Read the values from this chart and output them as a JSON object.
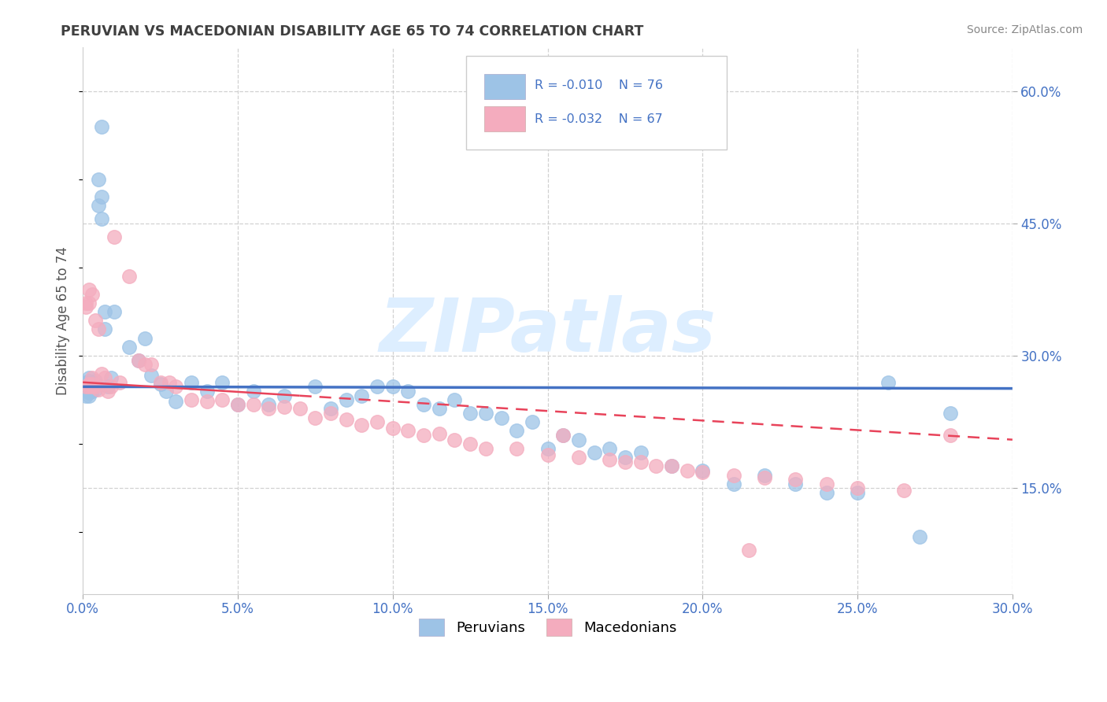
{
  "title": "PERUVIAN VS MACEDONIAN DISABILITY AGE 65 TO 74 CORRELATION CHART",
  "source": "Source: ZipAtlas.com",
  "ylabel": "Disability Age 65 to 74",
  "xlim": [
    0.0,
    0.3
  ],
  "ylim": [
    0.03,
    0.65
  ],
  "right_yticks": [
    0.15,
    0.3,
    0.45,
    0.6
  ],
  "right_yticklabels": [
    "15.0%",
    "30.0%",
    "45.0%",
    "60.0%"
  ],
  "xticks": [
    0.0,
    0.05,
    0.1,
    0.15,
    0.2,
    0.25,
    0.3
  ],
  "xticklabels": [
    "0.0%",
    "5.0%",
    "10.0%",
    "15.0%",
    "20.0%",
    "25.0%",
    "30.0%"
  ],
  "legend_r_blue": "R = -0.010",
  "legend_n_blue": "N = 76",
  "legend_r_pink": "R = -0.032",
  "legend_n_pink": "N = 67",
  "blue_color": "#9DC3E6",
  "pink_color": "#F4ACBE",
  "trend_blue_color": "#4472C4",
  "trend_pink_color": "#E8435A",
  "tick_color": "#4472C4",
  "watermark_text": "ZIPatlas",
  "blue_trend": [
    0.265,
    0.263
  ],
  "pink_trend": [
    0.27,
    0.205
  ],
  "peruvian_x": [
    0.001,
    0.001,
    0.001,
    0.001,
    0.001,
    0.002,
    0.002,
    0.002,
    0.002,
    0.002,
    0.002,
    0.002,
    0.003,
    0.003,
    0.003,
    0.003,
    0.003,
    0.004,
    0.004,
    0.004,
    0.005,
    0.005,
    0.006,
    0.006,
    0.006,
    0.007,
    0.007,
    0.008,
    0.009,
    0.01,
    0.015,
    0.018,
    0.02,
    0.022,
    0.025,
    0.027,
    0.03,
    0.035,
    0.04,
    0.045,
    0.05,
    0.055,
    0.06,
    0.065,
    0.075,
    0.08,
    0.085,
    0.09,
    0.095,
    0.1,
    0.105,
    0.11,
    0.115,
    0.12,
    0.125,
    0.13,
    0.135,
    0.14,
    0.145,
    0.15,
    0.155,
    0.16,
    0.165,
    0.17,
    0.175,
    0.18,
    0.19,
    0.2,
    0.21,
    0.22,
    0.23,
    0.24,
    0.25,
    0.26,
    0.27,
    0.28
  ],
  "peruvian_y": [
    0.265,
    0.268,
    0.262,
    0.255,
    0.27,
    0.258,
    0.272,
    0.26,
    0.265,
    0.255,
    0.268,
    0.275,
    0.265,
    0.26,
    0.27,
    0.268,
    0.262,
    0.262,
    0.268,
    0.272,
    0.5,
    0.47,
    0.56,
    0.48,
    0.455,
    0.35,
    0.33,
    0.265,
    0.275,
    0.35,
    0.31,
    0.295,
    0.32,
    0.278,
    0.268,
    0.26,
    0.248,
    0.27,
    0.26,
    0.27,
    0.245,
    0.26,
    0.245,
    0.255,
    0.265,
    0.24,
    0.25,
    0.255,
    0.265,
    0.265,
    0.26,
    0.245,
    0.24,
    0.25,
    0.235,
    0.235,
    0.23,
    0.215,
    0.225,
    0.195,
    0.21,
    0.205,
    0.19,
    0.195,
    0.185,
    0.19,
    0.175,
    0.17,
    0.155,
    0.165,
    0.155,
    0.145,
    0.145,
    0.27,
    0.095,
    0.235
  ],
  "macedonian_x": [
    0.001,
    0.001,
    0.001,
    0.002,
    0.002,
    0.002,
    0.002,
    0.003,
    0.003,
    0.003,
    0.003,
    0.004,
    0.004,
    0.005,
    0.005,
    0.006,
    0.007,
    0.008,
    0.009,
    0.01,
    0.012,
    0.015,
    0.018,
    0.02,
    0.022,
    0.025,
    0.028,
    0.03,
    0.035,
    0.04,
    0.045,
    0.05,
    0.055,
    0.06,
    0.065,
    0.07,
    0.075,
    0.08,
    0.085,
    0.09,
    0.095,
    0.1,
    0.105,
    0.11,
    0.115,
    0.12,
    0.125,
    0.13,
    0.14,
    0.15,
    0.155,
    0.16,
    0.17,
    0.175,
    0.18,
    0.185,
    0.19,
    0.195,
    0.2,
    0.21,
    0.215,
    0.22,
    0.23,
    0.24,
    0.25,
    0.265,
    0.28
  ],
  "macedonian_y": [
    0.355,
    0.36,
    0.265,
    0.36,
    0.375,
    0.265,
    0.268,
    0.37,
    0.275,
    0.265,
    0.268,
    0.34,
    0.265,
    0.33,
    0.262,
    0.28,
    0.275,
    0.26,
    0.265,
    0.435,
    0.27,
    0.39,
    0.295,
    0.29,
    0.29,
    0.27,
    0.27,
    0.265,
    0.25,
    0.248,
    0.25,
    0.245,
    0.245,
    0.24,
    0.242,
    0.24,
    0.23,
    0.235,
    0.228,
    0.222,
    0.225,
    0.218,
    0.215,
    0.21,
    0.212,
    0.205,
    0.2,
    0.195,
    0.195,
    0.188,
    0.21,
    0.185,
    0.182,
    0.18,
    0.18,
    0.175,
    0.175,
    0.17,
    0.168,
    0.165,
    0.08,
    0.162,
    0.16,
    0.155,
    0.15,
    0.148,
    0.21
  ]
}
